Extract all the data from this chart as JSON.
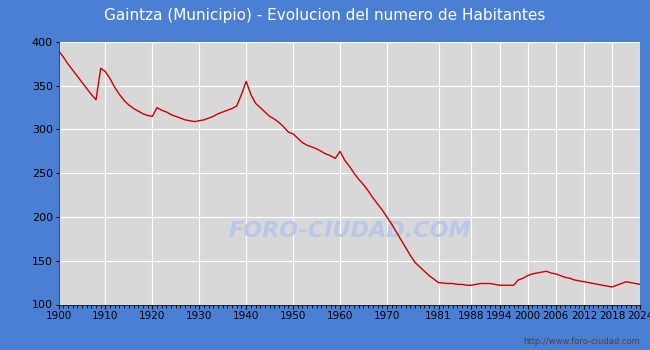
{
  "title": "Gaintza (Municipio) - Evolucion del numero de Habitantes",
  "title_bg_color": "#4a7fd4",
  "title_text_color": "white",
  "fig_bg_color": "#4a7fd4",
  "plot_bg_color": "#d8d8d8",
  "outer_bg_color": "#ffffff",
  "line_color": "#cc0000",
  "watermark_text": "FORO-CIUDAD.COM",
  "watermark_color": "#b8c8e8",
  "url_text": "http://www.foro-ciudad.com",
  "ylim": [
    100,
    400
  ],
  "yticks": [
    100,
    150,
    200,
    250,
    300,
    350,
    400
  ],
  "xlim": [
    1900,
    2024
  ],
  "xticks": [
    1900,
    1910,
    1920,
    1930,
    1940,
    1950,
    1960,
    1970,
    1981,
    1988,
    1994,
    2000,
    2006,
    2012,
    2018,
    2024
  ],
  "years": [
    1900,
    1901,
    1902,
    1903,
    1904,
    1905,
    1906,
    1907,
    1908,
    1909,
    1910,
    1911,
    1912,
    1913,
    1914,
    1915,
    1916,
    1917,
    1918,
    1919,
    1920,
    1921,
    1922,
    1923,
    1924,
    1925,
    1926,
    1927,
    1928,
    1929,
    1930,
    1931,
    1932,
    1933,
    1934,
    1935,
    1936,
    1937,
    1938,
    1939,
    1940,
    1941,
    1942,
    1943,
    1944,
    1945,
    1946,
    1947,
    1948,
    1949,
    1950,
    1951,
    1952,
    1953,
    1954,
    1955,
    1956,
    1957,
    1958,
    1959,
    1960,
    1961,
    1962,
    1963,
    1964,
    1965,
    1966,
    1967,
    1968,
    1969,
    1970,
    1971,
    1972,
    1973,
    1974,
    1975,
    1976,
    1977,
    1978,
    1979,
    1981,
    1983,
    1984,
    1985,
    1986,
    1987,
    1988,
    1989,
    1990,
    1991,
    1992,
    1993,
    1994,
    1995,
    1996,
    1997,
    1998,
    1999,
    2000,
    2001,
    2002,
    2003,
    2004,
    2005,
    2006,
    2007,
    2008,
    2009,
    2010,
    2011,
    2012,
    2013,
    2014,
    2015,
    2016,
    2017,
    2018,
    2019,
    2020,
    2021,
    2022,
    2023,
    2024
  ],
  "population": [
    390,
    383,
    375,
    368,
    361,
    354,
    347,
    340,
    334,
    370,
    366,
    358,
    348,
    340,
    333,
    328,
    324,
    321,
    318,
    316,
    315,
    325,
    322,
    320,
    317,
    315,
    313,
    311,
    310,
    309,
    310,
    311,
    313,
    315,
    318,
    320,
    322,
    324,
    327,
    340,
    355,
    340,
    330,
    325,
    320,
    315,
    312,
    308,
    303,
    297,
    295,
    290,
    285,
    282,
    280,
    278,
    275,
    272,
    270,
    267,
    275,
    265,
    258,
    250,
    243,
    237,
    230,
    222,
    215,
    208,
    200,
    192,
    183,
    174,
    165,
    156,
    148,
    143,
    138,
    133,
    125,
    124,
    124,
    123,
    123,
    122,
    122,
    123,
    124,
    124,
    124,
    123,
    122,
    122,
    122,
    122,
    128,
    130,
    133,
    135,
    136,
    137,
    138,
    136,
    135,
    133,
    131,
    130,
    128,
    127,
    126,
    125,
    124,
    123,
    122,
    121,
    120,
    122,
    124,
    126,
    125,
    124,
    123
  ]
}
